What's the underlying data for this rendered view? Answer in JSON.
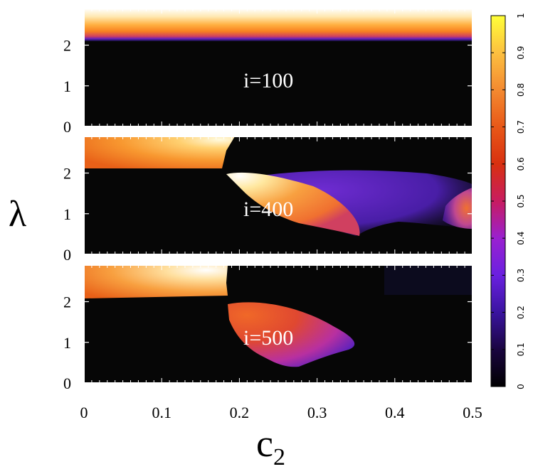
{
  "chart_data": {
    "type": "heatmap",
    "xlabel": "c",
    "xlabel_subscript": "2",
    "ylabel": "λ",
    "xlim": [
      0,
      0.5
    ],
    "ylim": [
      0,
      2.9
    ],
    "x_ticks": [
      "0",
      "0.1",
      "0.2",
      "0.3",
      "0.4",
      "0.5"
    ],
    "x_tick_values": [
      0,
      0.1,
      0.2,
      0.3,
      0.4,
      0.5
    ],
    "y_ticks": [
      "0",
      "1",
      "2"
    ],
    "y_tick_values": [
      0,
      1,
      2
    ],
    "colorbar": {
      "range": [
        0,
        1
      ],
      "ticks": [
        "0",
        "0.1",
        "0.2",
        "0.3",
        "0.4",
        "0.5",
        "0.6",
        "0.7",
        "0.8",
        "0.9",
        "1"
      ],
      "tick_values": [
        0,
        0.1,
        0.2,
        0.3,
        0.4,
        0.5,
        0.6,
        0.7,
        0.8,
        0.9,
        1
      ],
      "colormap": [
        "#000000",
        "#2a0a80",
        "#6a1ae0",
        "#a020c8",
        "#d02050",
        "#e04010",
        "#f06818",
        "#f89030",
        "#fcc04a",
        "#ffe040",
        "#ffff40"
      ]
    },
    "panels": [
      {
        "label": "i=100",
        "regions": [
          {
            "x": [
              0.0,
              0.5
            ],
            "lambda": [
              2.2,
              2.9
            ],
            "value": 0.75,
            "note_top": 1.0
          }
        ]
      },
      {
        "label": "i=400",
        "regions": [
          {
            "x": [
              0.0,
              0.18
            ],
            "lambda": [
              2.15,
              2.9
            ],
            "value": 0.75
          },
          {
            "x": [
              0.19,
              0.36
            ],
            "lambda": [
              0.5,
              2.05
            ],
            "value": 0.8
          },
          {
            "x": [
              0.34,
              0.47
            ],
            "lambda": [
              0.8,
              2.0
            ],
            "value": 0.3
          },
          {
            "x": [
              0.46,
              0.5
            ],
            "lambda": [
              0.7,
              1.6
            ],
            "value": 0.6
          }
        ]
      },
      {
        "label": "i=500",
        "regions": [
          {
            "x": [
              0.0,
              0.18
            ],
            "lambda": [
              2.15,
              2.9
            ],
            "value": 0.8
          },
          {
            "x": [
              0.19,
              0.34
            ],
            "lambda": [
              0.5,
              2.0
            ],
            "value": 0.65
          }
        ]
      }
    ]
  }
}
